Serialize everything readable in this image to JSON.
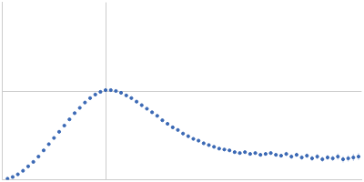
{
  "chart_data": {
    "type": "scatter",
    "color": "#3a68b4",
    "marker": "circle",
    "grid": true,
    "tick_labels": false,
    "xlim": [
      0,
      3.48
    ],
    "xticks": [
      1
    ],
    "ylim": [
      0,
      2
    ],
    "yticks": [
      1
    ],
    "x": [
      0.05,
      0.1,
      0.15,
      0.2,
      0.25,
      0.3,
      0.35,
      0.4,
      0.45,
      0.5,
      0.55,
      0.6,
      0.65,
      0.7,
      0.75,
      0.8,
      0.85,
      0.9,
      0.95,
      1.0,
      1.05,
      1.1,
      1.15,
      1.2,
      1.25,
      1.3,
      1.35,
      1.4,
      1.45,
      1.5,
      1.55,
      1.6,
      1.65,
      1.7,
      1.75,
      1.8,
      1.85,
      1.9,
      1.95,
      2.0,
      2.05,
      2.1,
      2.15,
      2.2,
      2.25,
      2.3,
      2.35,
      2.4,
      2.45,
      2.5,
      2.55,
      2.6,
      2.65,
      2.7,
      2.75,
      2.8,
      2.85,
      2.9,
      2.95,
      3.0,
      3.05,
      3.1,
      3.15,
      3.2,
      3.25,
      3.3,
      3.35,
      3.4,
      3.45
    ],
    "values": [
      0.01,
      0.03,
      0.06,
      0.1,
      0.15,
      0.2,
      0.26,
      0.33,
      0.4,
      0.47,
      0.54,
      0.61,
      0.68,
      0.75,
      0.81,
      0.87,
      0.92,
      0.96,
      0.99,
      1.01,
      1.01,
      1.0,
      0.98,
      0.95,
      0.92,
      0.88,
      0.84,
      0.8,
      0.76,
      0.72,
      0.67,
      0.63,
      0.59,
      0.56,
      0.52,
      0.49,
      0.46,
      0.44,
      0.41,
      0.39,
      0.37,
      0.35,
      0.34,
      0.33,
      0.31,
      0.3,
      0.31,
      0.29,
      0.3,
      0.28,
      0.29,
      0.3,
      0.28,
      0.27,
      0.29,
      0.26,
      0.28,
      0.25,
      0.27,
      0.24,
      0.26,
      0.23,
      0.25,
      0.24,
      0.26,
      0.23,
      0.24,
      0.25,
      0.26
    ],
    "errors": [
      0.005,
      0.005,
      0.005,
      0.005,
      0.005,
      0.005,
      0.005,
      0.005,
      0.005,
      0.005,
      0.005,
      0.005,
      0.005,
      0.005,
      0.005,
      0.005,
      0.005,
      0.005,
      0.005,
      0.005,
      0.005,
      0.005,
      0.005,
      0.005,
      0.005,
      0.005,
      0.005,
      0.005,
      0.005,
      0.005,
      0.005,
      0.005,
      0.005,
      0.005,
      0.005,
      0.005,
      0.005,
      0.005,
      0.005,
      0.01,
      0.01,
      0.01,
      0.01,
      0.01,
      0.015,
      0.015,
      0.015,
      0.015,
      0.015,
      0.02,
      0.02,
      0.02,
      0.02,
      0.02,
      0.025,
      0.025,
      0.025,
      0.025,
      0.025,
      0.03,
      0.03,
      0.03,
      0.03,
      0.03,
      0.035,
      0.035,
      0.035,
      0.04,
      0.04
    ]
  }
}
